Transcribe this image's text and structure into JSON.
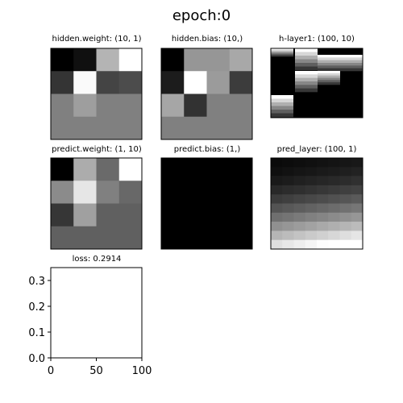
{
  "figure": {
    "title": "epoch:0"
  },
  "panels": {
    "hidden_weight": {
      "title": "hidden.weight: (10, 1)",
      "grid": [
        [
          0,
          16,
          180,
          255
        ],
        [
          52,
          250,
          68,
          76
        ],
        [
          128,
          158,
          128,
          128
        ],
        [
          128,
          128,
          128,
          128
        ]
      ]
    },
    "hidden_bias": {
      "title": "hidden.bias: (10,)",
      "grid": [
        [
          0,
          150,
          150,
          168
        ],
        [
          28,
          255,
          155,
          60
        ],
        [
          166,
          50,
          128,
          128
        ],
        [
          128,
          128,
          128,
          128
        ]
      ]
    },
    "h_layer1": {
      "title": "h-layer1: (100, 10)"
    },
    "predict_weight": {
      "title": "predict.weight: (1, 10)",
      "grid": [
        [
          0,
          172,
          106,
          255
        ],
        [
          139,
          230,
          128,
          104
        ],
        [
          54,
          160,
          96,
          96
        ],
        [
          96,
          96,
          96,
          96
        ]
      ]
    },
    "predict_bias": {
      "title": "predict.bias: (1,)",
      "grid": [
        [
          0
        ]
      ]
    },
    "pred_layer": {
      "title": "pred_layer: (100, 1)"
    }
  },
  "chart_data": {
    "type": "line",
    "title": "loss: 0.2914",
    "series": [],
    "xlim": [
      0,
      100
    ],
    "ylim": [
      0.0,
      0.35
    ],
    "x_ticks": [
      "0",
      "50",
      "100"
    ],
    "y_ticks": [
      "0.0",
      "0.1",
      "0.2",
      "0.3"
    ],
    "xlabel": "",
    "ylabel": ""
  }
}
